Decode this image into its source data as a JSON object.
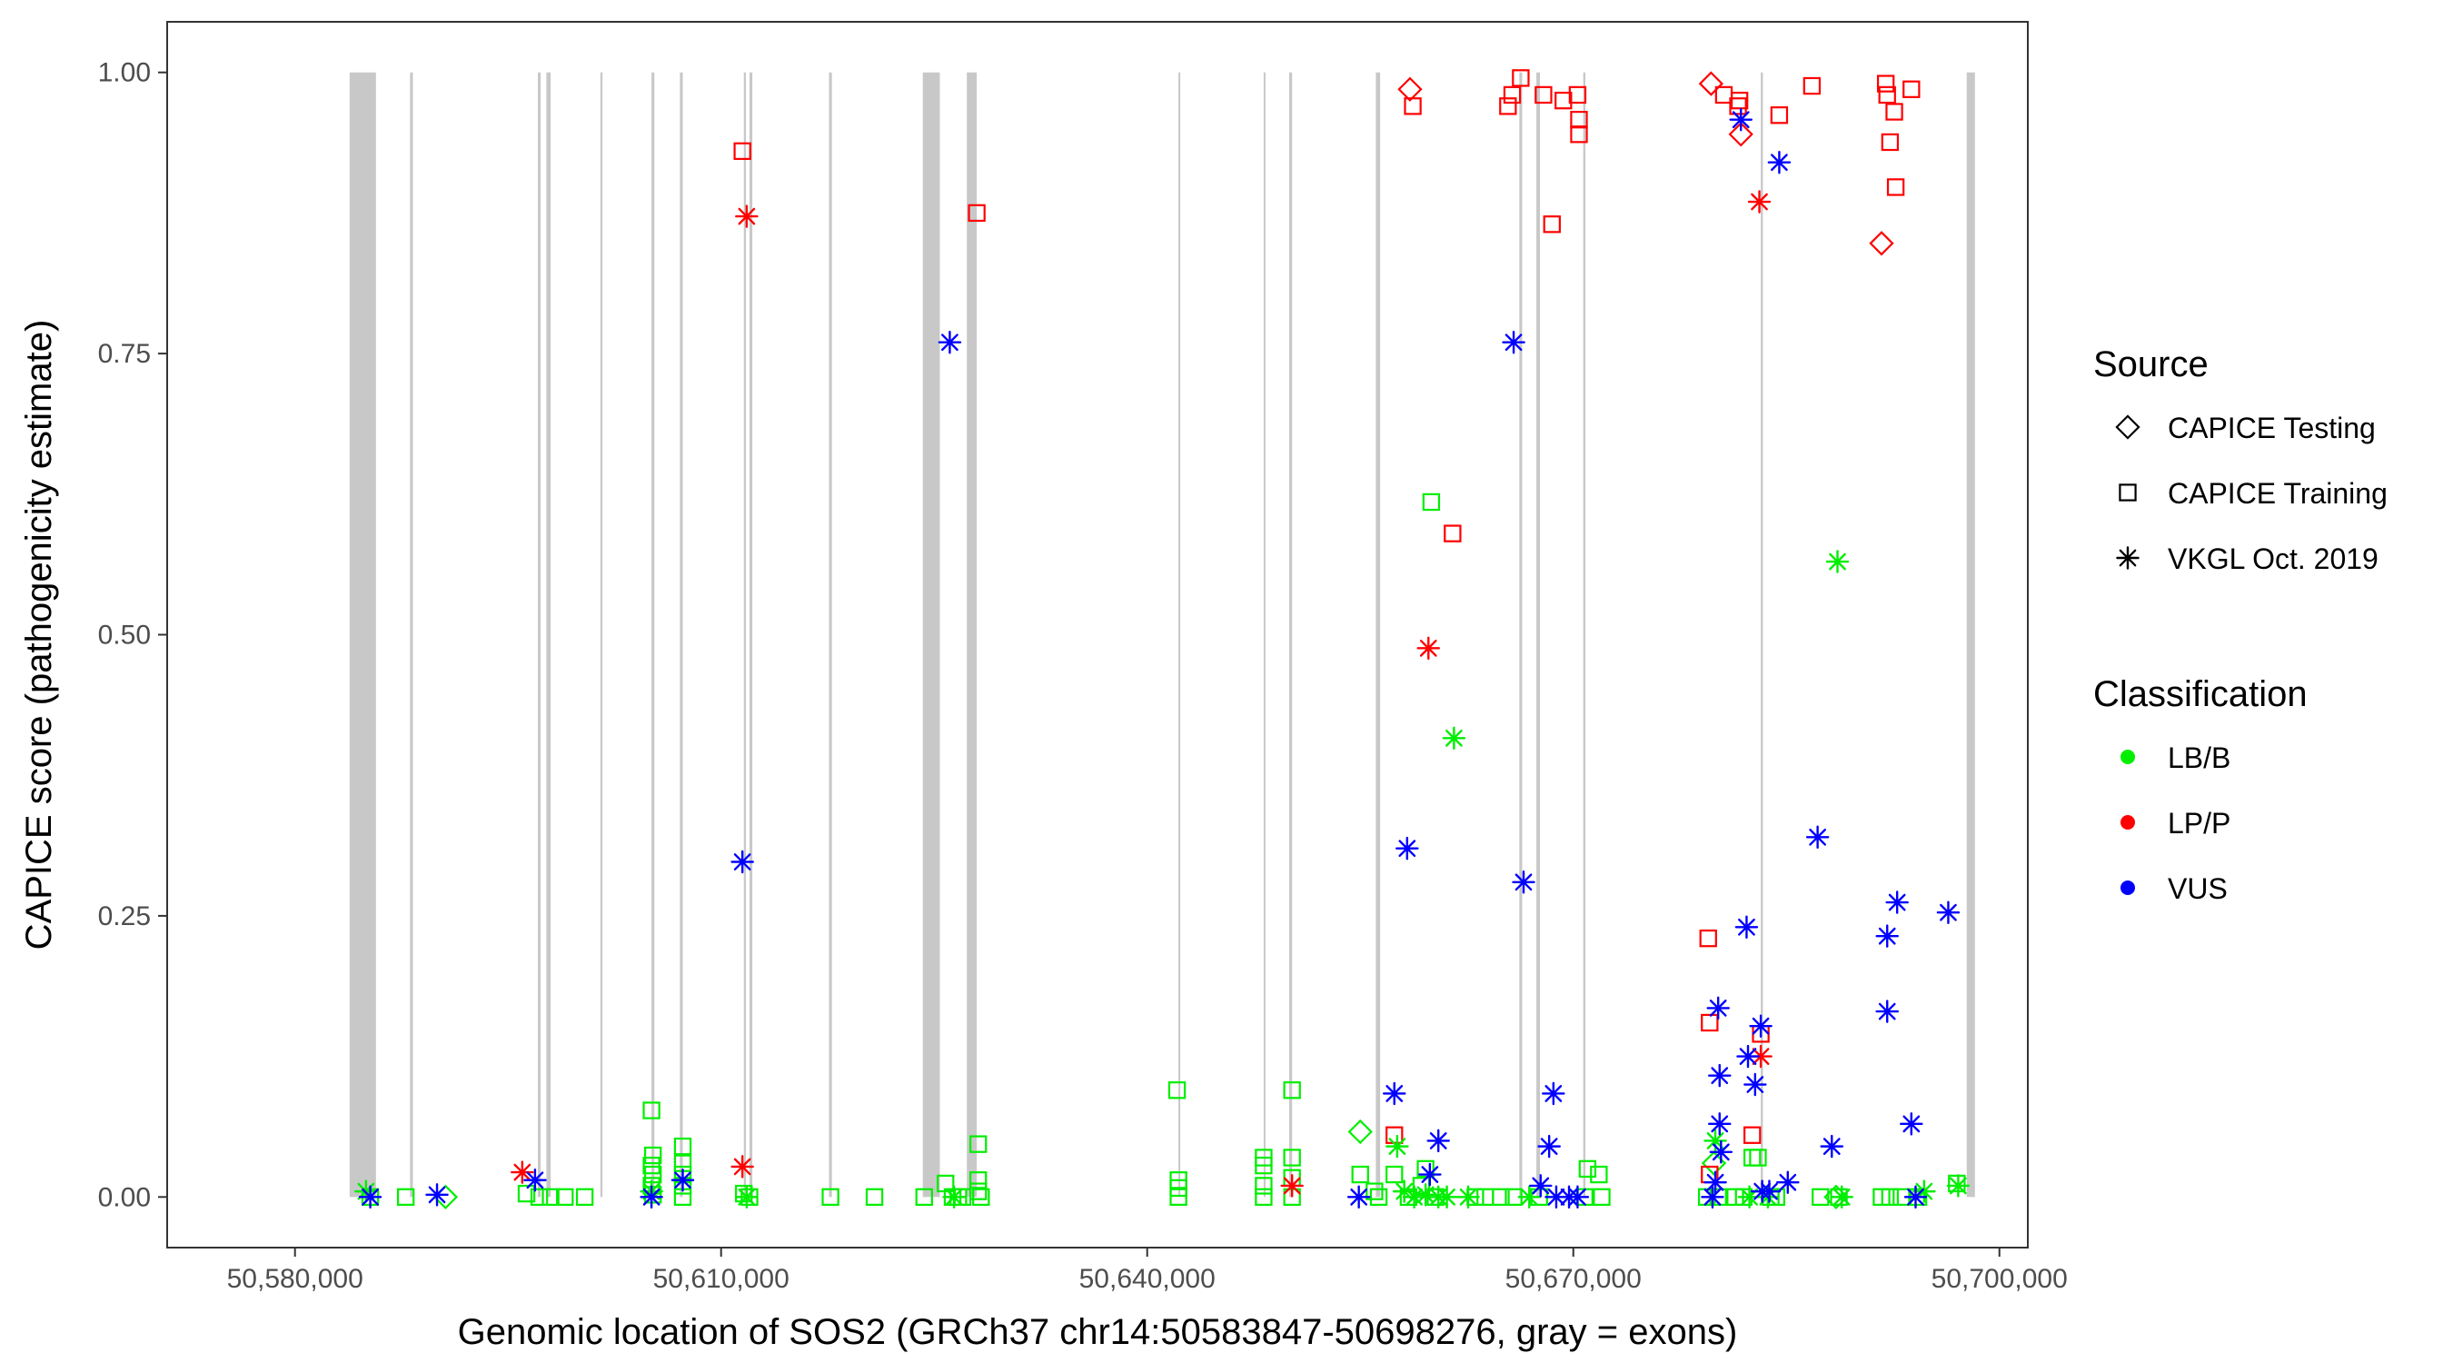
{
  "chart_data": {
    "type": "scatter",
    "xlabel": "Genomic location of SOS2 (GRCh37 chr14:50583847-50698276, gray = exons)",
    "ylabel": "CAPICE score (pathogenicity estimate)",
    "xlim": [
      50571000,
      50702000
    ],
    "ylim": [
      -0.045,
      1.045
    ],
    "x_ticks": [
      {
        "value": 50580000,
        "label": "50,580,000"
      },
      {
        "value": 50610000,
        "label": "50,610,000"
      },
      {
        "value": 50640000,
        "label": "50,640,000"
      },
      {
        "value": 50670000,
        "label": "50,670,000"
      },
      {
        "value": 50700000,
        "label": "50,700,000"
      }
    ],
    "y_ticks": [
      {
        "value": 0.0,
        "label": "0.00"
      },
      {
        "value": 0.25,
        "label": "0.25"
      },
      {
        "value": 0.5,
        "label": "0.50"
      },
      {
        "value": 0.75,
        "label": "0.75"
      },
      {
        "value": 1.0,
        "label": "1.00"
      }
    ],
    "exons": [
      [
        50583847,
        50585700
      ],
      [
        50588100,
        50588300
      ],
      [
        50597100,
        50597300
      ],
      [
        50597700,
        50598000
      ],
      [
        50601500,
        50601650
      ],
      [
        50605100,
        50605300
      ],
      [
        50607100,
        50607300
      ],
      [
        50611600,
        50611750
      ],
      [
        50612000,
        50612200
      ],
      [
        50617600,
        50617800
      ],
      [
        50624200,
        50625400
      ],
      [
        50627300,
        50628000
      ],
      [
        50642200,
        50642300
      ],
      [
        50648200,
        50648300
      ],
      [
        50650000,
        50650200
      ],
      [
        50656100,
        50656400
      ],
      [
        50666200,
        50666400
      ],
      [
        50667400,
        50667650
      ],
      [
        50670700,
        50670850
      ],
      [
        50683200,
        50683350
      ],
      [
        50697700,
        50698276
      ]
    ],
    "legend": {
      "source_title": "Source",
      "source_items": [
        {
          "name": "CAPICE Testing",
          "shape": "diamond"
        },
        {
          "name": "CAPICE Training",
          "shape": "square"
        },
        {
          "name": "VKGL Oct. 2019",
          "shape": "asterisk"
        }
      ],
      "class_title": "Classification",
      "class_items": [
        {
          "name": "LB/B",
          "color": "#00ee00"
        },
        {
          "name": "LP/P",
          "color": "#ff0000"
        },
        {
          "name": "VUS",
          "color": "#0000ff"
        }
      ]
    },
    "series": [
      {
        "source": "CAPICE Testing",
        "classification": "LP/P",
        "points": [
          [
            50658500,
            0.985
          ],
          [
            50679700,
            0.99
          ],
          [
            50681800,
            0.945
          ],
          [
            50691700,
            0.848
          ]
        ]
      },
      {
        "source": "CAPICE Testing",
        "classification": "LB/B",
        "points": [
          [
            50590600,
            0.0
          ],
          [
            50655000,
            0.058
          ],
          [
            50679900,
            0.03
          ],
          [
            50688500,
            0.0
          ]
        ]
      },
      {
        "source": "CAPICE Training",
        "classification": "LP/P",
        "points": [
          [
            50611500,
            0.93
          ],
          [
            50628000,
            0.875
          ],
          [
            50658700,
            0.97
          ],
          [
            50665400,
            0.97
          ],
          [
            50665700,
            0.98
          ],
          [
            50666300,
            0.995
          ],
          [
            50667900,
            0.98
          ],
          [
            50668500,
            0.865
          ],
          [
            50669300,
            0.975
          ],
          [
            50670300,
            0.98
          ],
          [
            50670400,
            0.958
          ],
          [
            50670400,
            0.945
          ],
          [
            50661500,
            0.59
          ],
          [
            50680600,
            0.98
          ],
          [
            50681600,
            0.97
          ],
          [
            50681700,
            0.975
          ],
          [
            50684500,
            0.962
          ],
          [
            50686800,
            0.988
          ],
          [
            50692000,
            0.99
          ],
          [
            50692100,
            0.98
          ],
          [
            50692300,
            0.938
          ],
          [
            50692600,
            0.965
          ],
          [
            50692700,
            0.898
          ],
          [
            50693800,
            0.985
          ],
          [
            50657400,
            0.055
          ],
          [
            50679500,
            0.23
          ],
          [
            50679600,
            0.155
          ],
          [
            50682600,
            0.055
          ],
          [
            50683200,
            0.145
          ],
          [
            50679600,
            0.02
          ]
        ]
      },
      {
        "source": "CAPICE Training",
        "classification": "LB/B",
        "points": [
          [
            50585300,
            0.0
          ],
          [
            50587800,
            0.0
          ],
          [
            50596300,
            0.003
          ],
          [
            50597200,
            0.0
          ],
          [
            50598000,
            0.0
          ],
          [
            50599000,
            0.0
          ],
          [
            50600400,
            0.0
          ],
          [
            50605100,
            0.077
          ],
          [
            50605200,
            0.037
          ],
          [
            50605100,
            0.028
          ],
          [
            50605200,
            0.02
          ],
          [
            50605100,
            0.01
          ],
          [
            50605200,
            0.002
          ],
          [
            50607300,
            0.045
          ],
          [
            50607300,
            0.03
          ],
          [
            50607300,
            0.02
          ],
          [
            50607300,
            0.01
          ],
          [
            50607300,
            0.0
          ],
          [
            50611600,
            0.003
          ],
          [
            50612000,
            0.0
          ],
          [
            50617700,
            0.0
          ],
          [
            50620800,
            0.0
          ],
          [
            50624300,
            0.0
          ],
          [
            50627000,
            0.0
          ],
          [
            50628100,
            0.047
          ],
          [
            50628100,
            0.015
          ],
          [
            50628100,
            0.005
          ],
          [
            50628300,
            0.0
          ],
          [
            50626700,
            0.0
          ],
          [
            50626300,
            0.0
          ],
          [
            50625800,
            0.012
          ],
          [
            50642100,
            0.095
          ],
          [
            50642200,
            0.015
          ],
          [
            50642200,
            0.008
          ],
          [
            50642200,
            0.0
          ],
          [
            50648200,
            0.035
          ],
          [
            50648200,
            0.028
          ],
          [
            50648200,
            0.01
          ],
          [
            50648200,
            0.0
          ],
          [
            50650200,
            0.095
          ],
          [
            50650200,
            0.035
          ],
          [
            50650200,
            0.017
          ],
          [
            50650200,
            0.0
          ],
          [
            50655000,
            0.02
          ],
          [
            50656000,
            0.005
          ],
          [
            50656300,
            0.0
          ],
          [
            50657400,
            0.02
          ],
          [
            50658400,
            0.0
          ],
          [
            50659600,
            0.025
          ],
          [
            50659300,
            0.01
          ],
          [
            50660000,
            0.618
          ],
          [
            50660300,
            0.0
          ],
          [
            50663100,
            0.0
          ],
          [
            50663800,
            0.0
          ],
          [
            50664900,
            0.0
          ],
          [
            50665800,
            0.0
          ],
          [
            50667600,
            0.0
          ],
          [
            50670800,
            0.0
          ],
          [
            50671000,
            0.025
          ],
          [
            50671800,
            0.02
          ],
          [
            50672000,
            0.0
          ],
          [
            50679400,
            0.0
          ],
          [
            50680200,
            0.0
          ],
          [
            50681400,
            0.0
          ],
          [
            50682000,
            0.0
          ],
          [
            50682600,
            0.035
          ],
          [
            50683000,
            0.035
          ],
          [
            50683900,
            0.0
          ],
          [
            50684300,
            0.0
          ],
          [
            50687400,
            0.0
          ],
          [
            50688700,
            0.0
          ],
          [
            50691700,
            0.0
          ],
          [
            50692300,
            0.0
          ],
          [
            50693100,
            0.0
          ],
          [
            50694300,
            0.0
          ],
          [
            50697000,
            0.012
          ]
        ]
      },
      {
        "source": "VKGL Oct. 2019",
        "classification": "LP/P",
        "points": [
          [
            50596000,
            0.022
          ],
          [
            50611800,
            0.872
          ],
          [
            50611500,
            0.027
          ],
          [
            50650200,
            0.01
          ],
          [
            50659800,
            0.488
          ],
          [
            50683100,
            0.885
          ],
          [
            50683200,
            0.125
          ]
        ]
      },
      {
        "source": "VKGL Oct. 2019",
        "classification": "LB/B",
        "points": [
          [
            50585000,
            0.005
          ],
          [
            50605100,
            0.005
          ],
          [
            50611800,
            0.0
          ],
          [
            50626400,
            0.0
          ],
          [
            50657600,
            0.045
          ],
          [
            50658100,
            0.005
          ],
          [
            50658800,
            0.0
          ],
          [
            50659600,
            0.002
          ],
          [
            50660500,
            0.0
          ],
          [
            50661100,
            0.0
          ],
          [
            50661600,
            0.408
          ],
          [
            50662600,
            0.0
          ],
          [
            50666900,
            0.0
          ],
          [
            50680000,
            0.05
          ],
          [
            50682400,
            0.0
          ],
          [
            50683700,
            0.0
          ],
          [
            50688600,
            0.565
          ],
          [
            50688900,
            0.0
          ],
          [
            50694700,
            0.005
          ],
          [
            50697100,
            0.01
          ]
        ]
      },
      {
        "source": "VKGL Oct. 2019",
        "classification": "VUS",
        "points": [
          [
            50585300,
            0.0
          ],
          [
            50590000,
            0.002
          ],
          [
            50596900,
            0.015
          ],
          [
            50605100,
            0.0
          ],
          [
            50607300,
            0.015
          ],
          [
            50611500,
            0.298
          ],
          [
            50626100,
            0.76
          ],
          [
            50654900,
            0.0
          ],
          [
            50657400,
            0.092
          ],
          [
            50658300,
            0.31
          ],
          [
            50659900,
            0.02
          ],
          [
            50660500,
            0.05
          ],
          [
            50665800,
            0.76
          ],
          [
            50666500,
            0.28
          ],
          [
            50667700,
            0.01
          ],
          [
            50668300,
            0.045
          ],
          [
            50668600,
            0.092
          ],
          [
            50668800,
            0.0
          ],
          [
            50669700,
            0.0
          ],
          [
            50670300,
            0.0
          ],
          [
            50679800,
            0.0
          ],
          [
            50680000,
            0.013
          ],
          [
            50680200,
            0.168
          ],
          [
            50680300,
            0.108
          ],
          [
            50680300,
            0.065
          ],
          [
            50680400,
            0.04
          ],
          [
            50681800,
            0.958
          ],
          [
            50682200,
            0.24
          ],
          [
            50682300,
            0.125
          ],
          [
            50682800,
            0.1
          ],
          [
            50683200,
            0.152
          ],
          [
            50683300,
            0.005
          ],
          [
            50683800,
            0.005
          ],
          [
            50684500,
            0.92
          ],
          [
            50685100,
            0.013
          ],
          [
            50687200,
            0.32
          ],
          [
            50688200,
            0.045
          ],
          [
            50692100,
            0.232
          ],
          [
            50692100,
            0.165
          ],
          [
            50692800,
            0.262
          ],
          [
            50693800,
            0.065
          ],
          [
            50694100,
            0.0
          ],
          [
            50696400,
            0.253
          ]
        ]
      }
    ]
  }
}
